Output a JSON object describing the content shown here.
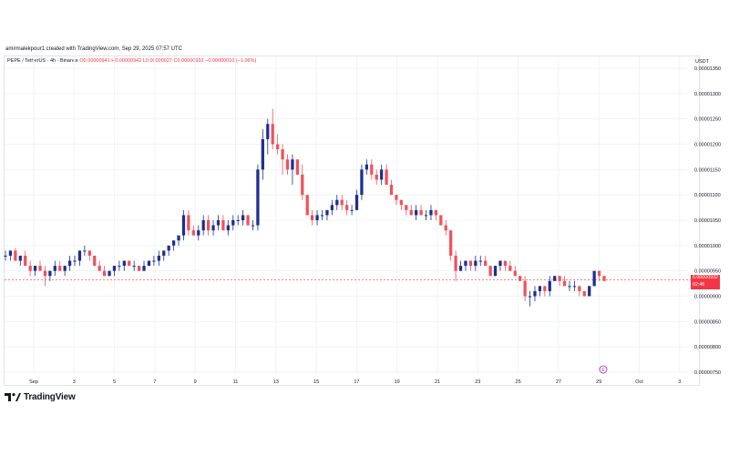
{
  "credit": "amirmalekpour1 created with TradingView.com, Sep 29, 2025 07:57 UTC",
  "legend": {
    "symbol": "PEPE / TetherUS · 4h · Binance",
    "open": "O0.00000941",
    "high": "H0.00000942",
    "low": "L0.00000927",
    "close": "C0.00000932",
    "change": "−0.00000010 (−1.06%)"
  },
  "unit": "USDT",
  "price_tag": {
    "price": "0.00000932",
    "countdown": "02:46"
  },
  "event_marker": "E",
  "logo_text": "TradingView",
  "colors": {
    "up": "#1c2f8f",
    "down": "#f0525a",
    "grid": "#f0f3fa",
    "price_line": "#f23645"
  },
  "chart_data": {
    "type": "candlestick",
    "y_tick_labels": [
      "0.00001350",
      "0.00001300",
      "0.00001250",
      "0.00001200",
      "0.00001150",
      "0.00001100",
      "0.00001050",
      "0.00001000",
      "0.00000950",
      "0.00000900",
      "0.00000850",
      "0.00000800",
      "0.00000750"
    ],
    "x_tick_labels": [
      "Sep",
      "3",
      "5",
      "7",
      "9",
      "11",
      "13",
      "15",
      "17",
      "19",
      "21",
      "23",
      "25",
      "27",
      "29",
      "Oct",
      "3"
    ],
    "ylim": [
      7.4e-06,
      1.36e-05
    ],
    "last_price": 9.32e-06,
    "candles": [
      [
        9.8e-06,
        9.9e-06,
        9.7e-06,
        9.8e-06
      ],
      [
        9.8e-06,
        9.9e-06,
        9.7e-06,
        9.9e-06
      ],
      [
        9.9e-06,
        9.95e-06,
        9.7e-06,
        9.7e-06
      ],
      [
        9.7e-06,
        9.8e-06,
        9.6e-06,
        9.8e-06
      ],
      [
        9.8e-06,
        9.9e-06,
        9.6e-06,
        9.6e-06
      ],
      [
        9.6e-06,
        9.7e-06,
        9.4e-06,
        9.5e-06
      ],
      [
        9.5e-06,
        9.6e-06,
        9.4e-06,
        9.6e-06
      ],
      [
        9.6e-06,
        9.7e-06,
        9.5e-06,
        9.5e-06
      ],
      [
        9.5e-06,
        9.6e-06,
        9.2e-06,
        9.4e-06
      ],
      [
        9.4e-06,
        9.5e-06,
        9.3e-06,
        9.5e-06
      ],
      [
        9.5e-06,
        9.7e-06,
        9.4e-06,
        9.6e-06
      ],
      [
        9.6e-06,
        9.7e-06,
        9.5e-06,
        9.5e-06
      ],
      [
        9.5e-06,
        9.6e-06,
        9.4e-06,
        9.6e-06
      ],
      [
        9.6e-06,
        9.8e-06,
        9.5e-06,
        9.7e-06
      ],
      [
        9.7e-06,
        9.8e-06,
        9.6e-06,
        9.7e-06
      ],
      [
        9.7e-06,
        9.9e-06,
        9.6e-06,
        9.9e-06
      ],
      [
        9.9e-06,
        1e-05,
        9.8e-06,
        9.9e-06
      ],
      [
        9.9e-06,
        9.9e-06,
        9.7e-06,
        9.8e-06
      ],
      [
        9.8e-06,
        9.8e-06,
        9.6e-06,
        9.6e-06
      ],
      [
        9.6e-06,
        9.7e-06,
        9.5e-06,
        9.5e-06
      ],
      [
        9.5e-06,
        9.6e-06,
        9.4e-06,
        9.4e-06
      ],
      [
        9.4e-06,
        9.5e-06,
        9.4e-06,
        9.5e-06
      ],
      [
        9.5e-06,
        9.6e-06,
        9.4e-06,
        9.6e-06
      ],
      [
        9.6e-06,
        9.7e-06,
        9.5e-06,
        9.6e-06
      ],
      [
        9.6e-06,
        9.7e-06,
        9.5e-06,
        9.7e-06
      ],
      [
        9.7e-06,
        9.7e-06,
        9.6e-06,
        9.6e-06
      ],
      [
        9.6e-06,
        9.7e-06,
        9.5e-06,
        9.6e-06
      ],
      [
        9.6e-06,
        9.6e-06,
        9.5e-06,
        9.5e-06
      ],
      [
        9.5e-06,
        9.7e-06,
        9.5e-06,
        9.6e-06
      ],
      [
        9.6e-06,
        9.7e-06,
        9.6e-06,
        9.7e-06
      ],
      [
        9.7e-06,
        9.8e-06,
        9.6e-06,
        9.7e-06
      ],
      [
        9.7e-06,
        9.9e-06,
        9.6e-06,
        9.8e-06
      ],
      [
        9.8e-06,
        9.9e-06,
        9.7e-06,
        9.9e-06
      ],
      [
        9.9e-06,
        1e-05,
        9.8e-06,
        1e-05
      ],
      [
        1e-05,
        1.01e-05,
        9.9e-06,
        1.01e-05
      ],
      [
        1.01e-05,
        1.02e-05,
        1e-05,
        1.02e-05
      ],
      [
        1.02e-05,
        1.07e-05,
        1.01e-05,
        1.06e-05
      ],
      [
        1.06e-05,
        1.07e-05,
        1.02e-05,
        1.03e-05
      ],
      [
        1.03e-05,
        1.04e-05,
        1.02e-05,
        1.02e-05
      ],
      [
        1.02e-05,
        1.04e-05,
        1.01e-05,
        1.03e-05
      ],
      [
        1.03e-05,
        1.06e-05,
        1.02e-05,
        1.05e-05
      ],
      [
        1.05e-05,
        1.06e-05,
        1.02e-05,
        1.03e-05
      ],
      [
        1.03e-05,
        1.05e-05,
        1.02e-05,
        1.04e-05
      ],
      [
        1.04e-05,
        1.06e-05,
        1.03e-05,
        1.05e-05
      ],
      [
        1.05e-05,
        1.06e-05,
        1.03e-05,
        1.03e-05
      ],
      [
        1.03e-05,
        1.05e-05,
        1.02e-05,
        1.04e-05
      ],
      [
        1.04e-05,
        1.06e-05,
        1.03e-05,
        1.05e-05
      ],
      [
        1.05e-05,
        1.06e-05,
        1.04e-05,
        1.05e-05
      ],
      [
        1.05e-05,
        1.07e-05,
        1.04e-05,
        1.06e-05
      ],
      [
        1.06e-05,
        1.06e-05,
        1.04e-05,
        1.04e-05
      ],
      [
        1.04e-05,
        1.05e-05,
        1.03e-05,
        1.04e-05
      ],
      [
        1.04e-05,
        1.16e-05,
        1.03e-05,
        1.15e-05
      ],
      [
        1.15e-05,
        1.23e-05,
        1.13e-05,
        1.21e-05
      ],
      [
        1.21e-05,
        1.25e-05,
        1.18e-05,
        1.24e-05
      ],
      [
        1.24e-05,
        1.27e-05,
        1.19e-05,
        1.2e-05
      ],
      [
        1.2e-05,
        1.22e-05,
        1.18e-05,
        1.19e-05
      ],
      [
        1.19e-05,
        1.2e-05,
        1.14e-05,
        1.17e-05
      ],
      [
        1.17e-05,
        1.18e-05,
        1.14e-05,
        1.15e-05
      ],
      [
        1.15e-05,
        1.18e-05,
        1.12e-05,
        1.17e-05
      ],
      [
        1.17e-05,
        1.17e-05,
        1.14e-05,
        1.14e-05
      ],
      [
        1.14e-05,
        1.16e-05,
        1.09e-05,
        1.1e-05
      ],
      [
        1.1e-05,
        1.1e-05,
        1.06e-05,
        1.06e-05
      ],
      [
        1.06e-05,
        1.07e-05,
        1.04e-05,
        1.05e-05
      ],
      [
        1.05e-05,
        1.07e-05,
        1.04e-05,
        1.06e-05
      ],
      [
        1.06e-05,
        1.07e-05,
        1.05e-05,
        1.06e-05
      ],
      [
        1.06e-05,
        1.07e-05,
        1.05e-05,
        1.07e-05
      ],
      [
        1.07e-05,
        1.09e-05,
        1.06e-05,
        1.08e-05
      ],
      [
        1.08e-05,
        1.1e-05,
        1.07e-05,
        1.09e-05
      ],
      [
        1.09e-05,
        1.1e-05,
        1.07e-05,
        1.08e-05
      ],
      [
        1.08e-05,
        1.09e-05,
        1.06e-05,
        1.07e-05
      ],
      [
        1.07e-05,
        1.08e-05,
        1.06e-05,
        1.07e-05
      ],
      [
        1.07e-05,
        1.11e-05,
        1.07e-05,
        1.1e-05
      ],
      [
        1.1e-05,
        1.16e-05,
        1.09e-05,
        1.15e-05
      ],
      [
        1.15e-05,
        1.17e-05,
        1.14e-05,
        1.16e-05
      ],
      [
        1.16e-05,
        1.17e-05,
        1.13e-05,
        1.14e-05
      ],
      [
        1.14e-05,
        1.15e-05,
        1.12e-05,
        1.13e-05
      ],
      [
        1.13e-05,
        1.16e-05,
        1.12e-05,
        1.15e-05
      ],
      [
        1.15e-05,
        1.16e-05,
        1.12e-05,
        1.12e-05
      ],
      [
        1.12e-05,
        1.13e-05,
        1.1e-05,
        1.1e-05
      ],
      [
        1.1e-05,
        1.1e-05,
        1.08e-05,
        1.09e-05
      ],
      [
        1.09e-05,
        1.09e-05,
        1.07e-05,
        1.08e-05
      ],
      [
        1.08e-05,
        1.08e-05,
        1.06e-05,
        1.07e-05
      ],
      [
        1.07e-05,
        1.08e-05,
        1.06e-05,
        1.06e-05
      ],
      [
        1.06e-05,
        1.08e-05,
        1.05e-05,
        1.07e-05
      ],
      [
        1.07e-05,
        1.08e-05,
        1.06e-05,
        1.06e-05
      ],
      [
        1.06e-05,
        1.07e-05,
        1.05e-05,
        1.06e-05
      ],
      [
        1.06e-05,
        1.08e-05,
        1.05e-05,
        1.07e-05
      ],
      [
        1.07e-05,
        1.07e-05,
        1.05e-05,
        1.06e-05
      ],
      [
        1.06e-05,
        1.06e-05,
        1.04e-05,
        1.04e-05
      ],
      [
        1.04e-05,
        1.05e-05,
        1.02e-05,
        1.03e-05
      ],
      [
        1.03e-05,
        1.03e-05,
        9.7e-06,
        9.8e-06
      ],
      [
        9.8e-06,
        9.9e-06,
        9.3e-06,
        9.5e-06
      ],
      [
        9.5e-06,
        9.7e-06,
        9.5e-06,
        9.6e-06
      ],
      [
        9.6e-06,
        9.7e-06,
        9.5e-06,
        9.7e-06
      ],
      [
        9.7e-06,
        9.7e-06,
        9.5e-06,
        9.6e-06
      ],
      [
        9.6e-06,
        9.8e-06,
        9.5e-06,
        9.7e-06
      ],
      [
        9.7e-06,
        9.8e-06,
        9.6e-06,
        9.7e-06
      ],
      [
        9.7e-06,
        9.8e-06,
        9.6e-06,
        9.6e-06
      ],
      [
        9.6e-06,
        9.6e-06,
        9.4e-06,
        9.4e-06
      ],
      [
        9.4e-06,
        9.6e-06,
        9.4e-06,
        9.6e-06
      ],
      [
        9.6e-06,
        9.7e-06,
        9.5e-06,
        9.7e-06
      ],
      [
        9.7e-06,
        9.7e-06,
        9.5e-06,
        9.6e-06
      ],
      [
        9.6e-06,
        9.7e-06,
        9.5e-06,
        9.5e-06
      ],
      [
        9.5e-06,
        9.6e-06,
        9.4e-06,
        9.4e-06
      ],
      [
        9.4e-06,
        9.4e-06,
        9.3e-06,
        9.3e-06
      ],
      [
        9.3e-06,
        9.4e-06,
        8.9e-06,
        9e-06
      ],
      [
        9e-06,
        9.1e-06,
        8.8e-06,
        9e-06
      ],
      [
        9e-06,
        9.2e-06,
        8.9e-06,
        9.1e-06
      ],
      [
        9.1e-06,
        9.2e-06,
        9e-06,
        9.2e-06
      ],
      [
        9.2e-06,
        9.2e-06,
        9e-06,
        9.1e-06
      ],
      [
        9.1e-06,
        9.4e-06,
        9e-06,
        9.3e-06
      ],
      [
        9.3e-06,
        9.4e-06,
        9.3e-06,
        9.4e-06
      ],
      [
        9.4e-06,
        9.4e-06,
        9.2e-06,
        9.3e-06
      ],
      [
        9.3e-06,
        9.4e-06,
        9.2e-06,
        9.2e-06
      ],
      [
        9.2e-06,
        9.3e-06,
        9.1e-06,
        9.2e-06
      ],
      [
        9.2e-06,
        9.3e-06,
        9.1e-06,
        9.2e-06
      ],
      [
        9.2e-06,
        9.2e-06,
        9e-06,
        9.1e-06
      ],
      [
        9.1e-06,
        9.1e-06,
        9e-06,
        9e-06
      ],
      [
        9e-06,
        9.2e-06,
        9e-06,
        9.2e-06
      ],
      [
        9.2e-06,
        9.5e-06,
        9.2e-06,
        9.5e-06
      ],
      [
        9.5e-06,
        9.5e-06,
        9.3e-06,
        9.4e-06
      ],
      [
        9.4e-06,
        9.4e-06,
        9.3e-06,
        9.3e-06
      ]
    ]
  }
}
